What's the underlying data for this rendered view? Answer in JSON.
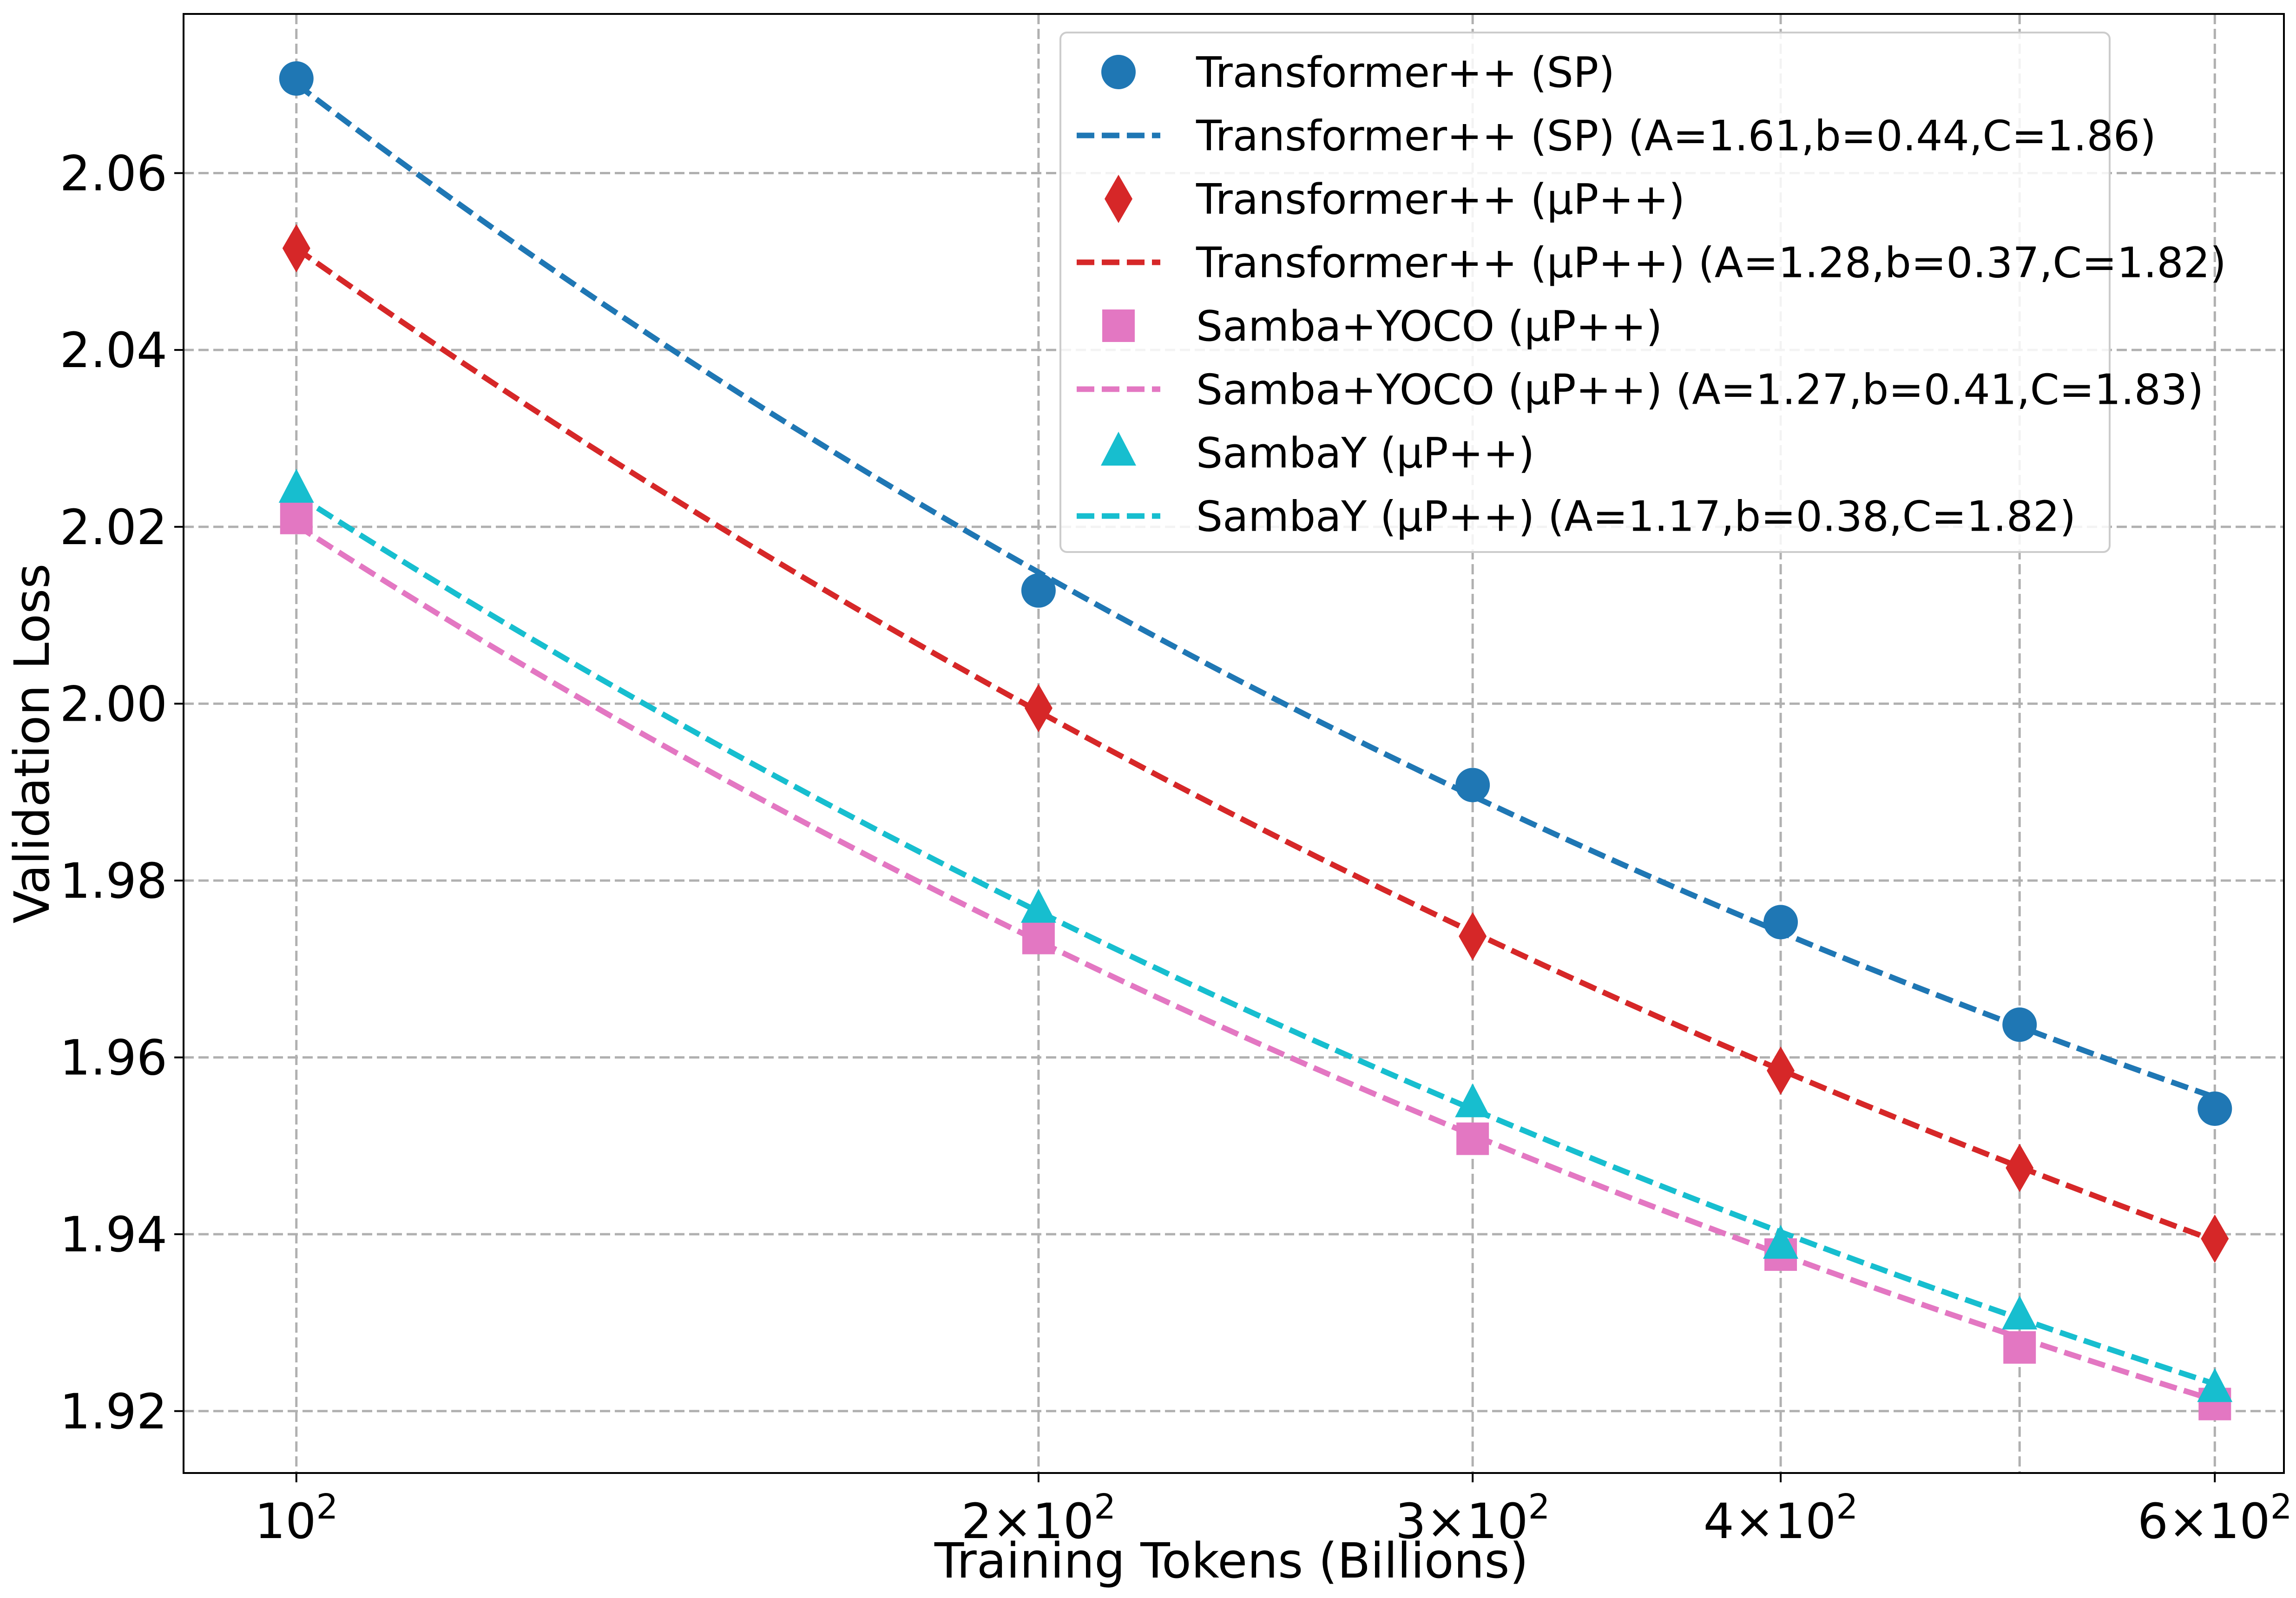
{
  "chart_data": {
    "type": "line",
    "title": "",
    "xlabel": "Training Tokens (Billions)",
    "ylabel": "Validation Loss",
    "xscale": "log",
    "xlim": [
      90,
      640
    ],
    "ylim": [
      1.913,
      2.078
    ],
    "grid": true,
    "legend_position": "top-right",
    "x_ticks": [
      {
        "value": 100,
        "mantissa": "",
        "base": "10",
        "exp": "2"
      },
      {
        "value": 200,
        "mantissa": "2",
        "base": "10",
        "exp": "2"
      },
      {
        "value": 300,
        "mantissa": "3",
        "base": "10",
        "exp": "2"
      },
      {
        "value": 400,
        "mantissa": "4",
        "base": "10",
        "exp": "2"
      },
      {
        "value": 600,
        "mantissa": "6",
        "base": "10",
        "exp": "2"
      }
    ],
    "x_grid": [
      100,
      200,
      300,
      400,
      500,
      600
    ],
    "y_ticks": [
      {
        "value": 1.92,
        "label": "1.92"
      },
      {
        "value": 1.94,
        "label": "1.94"
      },
      {
        "value": 1.96,
        "label": "1.96"
      },
      {
        "value": 1.98,
        "label": "1.98"
      },
      {
        "value": 2.0,
        "label": "2.00"
      },
      {
        "value": 2.02,
        "label": "2.02"
      },
      {
        "value": 2.04,
        "label": "2.04"
      },
      {
        "value": 2.06,
        "label": "2.06"
      }
    ],
    "x": [
      100,
      200,
      300,
      400,
      500,
      600
    ],
    "series": [
      {
        "name": "Transformer++ (SP)",
        "marker": "circle",
        "color": "#1f77b4",
        "values": [
          2.0707,
          2.0128,
          1.9908,
          1.9753,
          1.9637,
          1.9542
        ],
        "fit": {
          "label": "Transformer++ (SP) (A=1.61,b=0.44,C=1.86)",
          "A": 1.61,
          "b": 0.44,
          "C": 1.86
        }
      },
      {
        "name": "Transformer++ (µP++)",
        "marker": "diamond",
        "color": "#d62728",
        "values": [
          2.0515,
          1.9995,
          1.9737,
          1.9585,
          1.9475,
          1.9395
        ],
        "fit": {
          "label": "Transformer++ (µP++) (A=1.28,b=0.37,C=1.82)",
          "A": 1.28,
          "b": 0.37,
          "C": 1.82
        }
      },
      {
        "name": "Samba+YOCO (µP++)",
        "marker": "square",
        "color": "#e377c2",
        "values": [
          2.021,
          1.9735,
          1.9508,
          1.9377,
          1.9272,
          1.9208
        ],
        "fit": {
          "label": "Samba+YOCO (µP++) (A=1.27,b=0.41,C=1.83)",
          "A": 1.27,
          "b": 0.41,
          "C": 1.83
        }
      },
      {
        "name": "SambaY (µP++)",
        "marker": "triangle",
        "color": "#17becf",
        "values": [
          2.0242,
          1.9767,
          1.9547,
          1.9387,
          1.9307,
          1.9225
        ],
        "fit": {
          "label": "SambaY (µP++) (A=1.17,b=0.38,C=1.82)",
          "A": 1.17,
          "b": 0.38,
          "C": 1.82
        }
      }
    ]
  }
}
